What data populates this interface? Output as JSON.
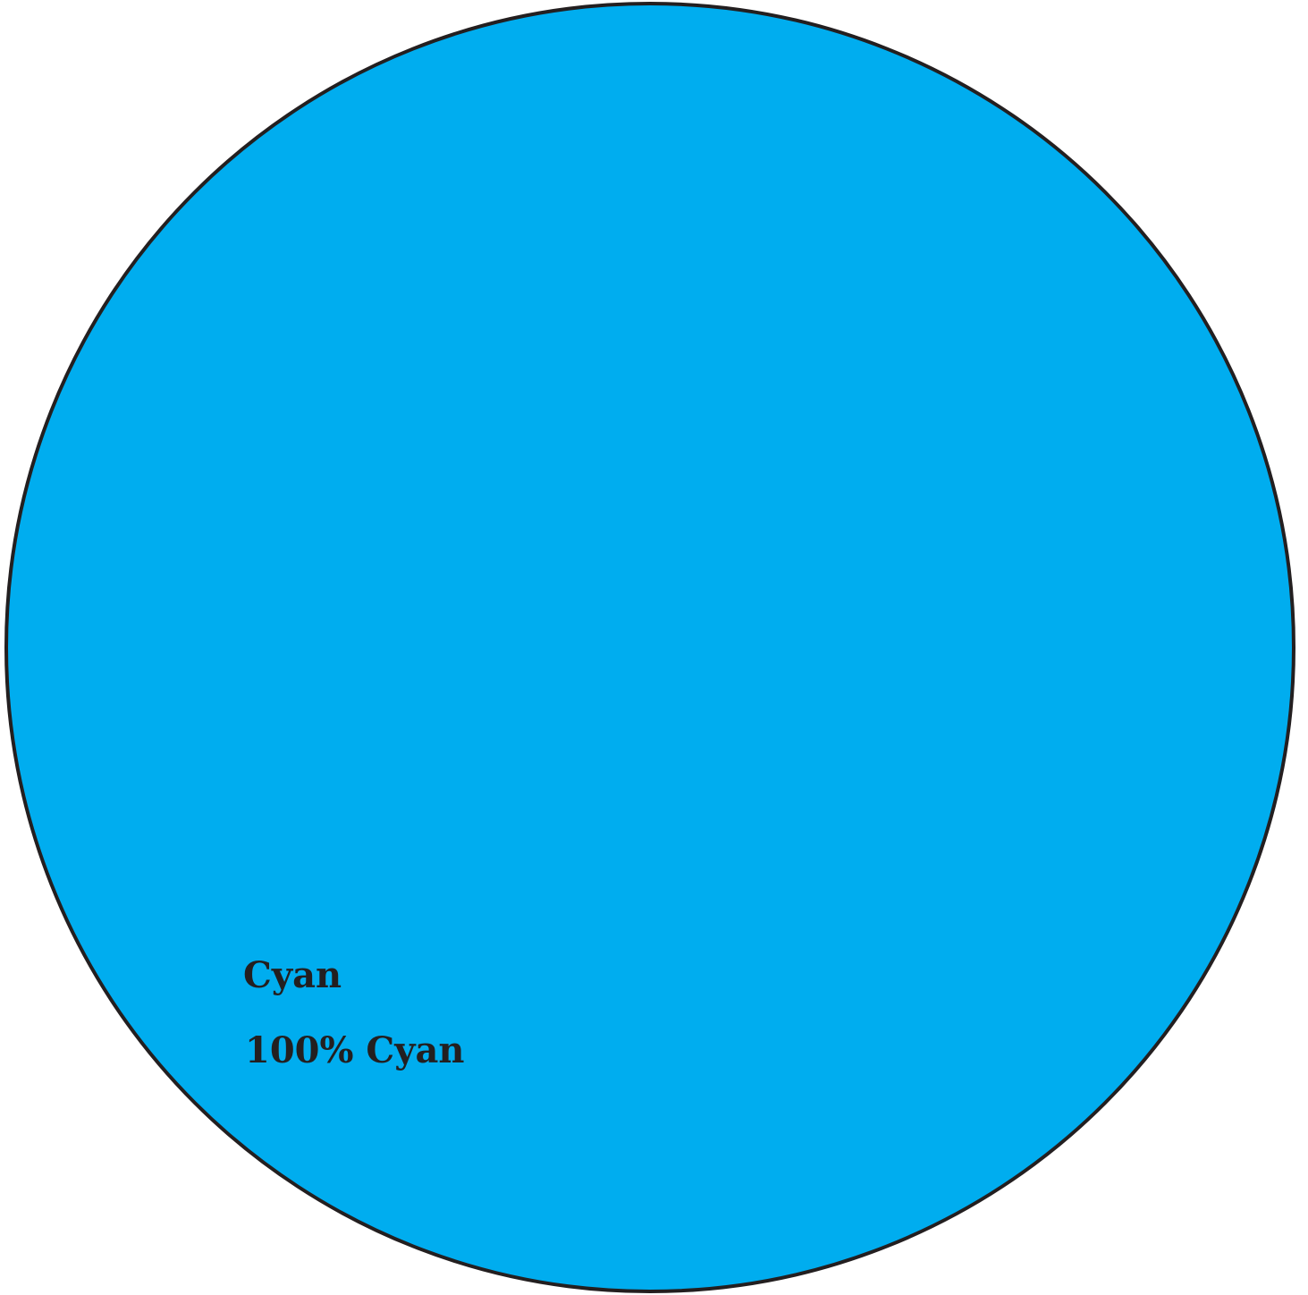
{
  "swatch": {
    "color_name": "Cyan",
    "mix_label": "100% Cyan",
    "fill_color": "#00adef",
    "stroke_color": "#231f20"
  }
}
